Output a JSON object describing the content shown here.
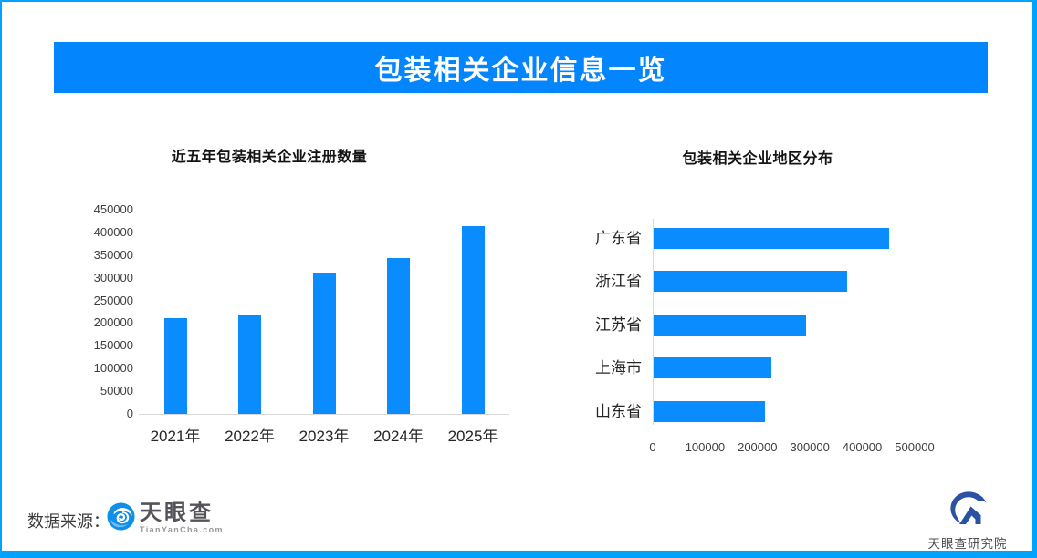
{
  "colors": {
    "page_border": "#00A2FF",
    "banner_bg": "#0385FE",
    "bar_blue": "#0A8CFE",
    "axis_line": "#D9D9D9",
    "tianyancha_blue": "#0F8FE8",
    "research_navy": "#2B51A3"
  },
  "banner": {
    "title": "包装相关企业信息一览"
  },
  "chart_data": [
    {
      "type": "bar",
      "title": "近五年包装相关企业注册数量",
      "categories": [
        "2021年",
        "2022年",
        "2023年",
        "2024年",
        "2025年"
      ],
      "values": [
        210000,
        216000,
        311000,
        343000,
        414000
      ],
      "ylim": [
        0,
        450000
      ],
      "ytick_step": 50000,
      "yticks": [
        "450000",
        "400000",
        "350000",
        "300000",
        "250000",
        "200000",
        "150000",
        "100000",
        "50000",
        "0"
      ],
      "xlabel": "",
      "ylabel": "",
      "bar_color": "#0A8CFE",
      "grid": "off",
      "legend": "none"
    },
    {
      "type": "horizontal-bar",
      "title": "包装相关企业地区分布",
      "categories": [
        "广东省",
        "浙江省",
        "江苏省",
        "上海市",
        "山东省"
      ],
      "values": [
        450000,
        370000,
        291000,
        224000,
        213000
      ],
      "xlim": [
        0,
        500000
      ],
      "xticks": [
        "0",
        "100000",
        "200000",
        "300000",
        "400000",
        "500000"
      ],
      "xlabel": "",
      "ylabel": "",
      "bar_color": "#0A8CFE",
      "grid": "off",
      "legend": "none"
    }
  ],
  "footer": {
    "source_label": "数据来源：",
    "tianyancha_name": "天眼查",
    "tianyancha_domain": "TianYanCha.com",
    "research_name": "天眼查研究院"
  }
}
